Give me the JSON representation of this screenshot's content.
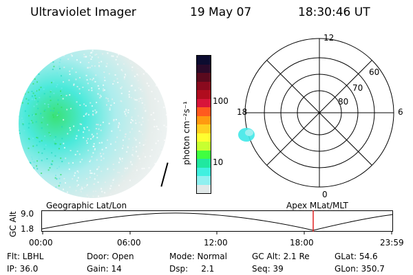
{
  "header": {
    "instrument": "Ultraviolet Imager",
    "date": "19 May 07",
    "time": "18:30:46 UT"
  },
  "colorbar": {
    "unit_label": "photon cm⁻²s⁻¹",
    "ticks": [
      "100",
      "10"
    ],
    "colors": [
      "#0c0c30",
      "#2a0a2a",
      "#5a0a1e",
      "#8a0a1e",
      "#b00c1e",
      "#d8143a",
      "#ff5a1e",
      "#ff9a10",
      "#ffd020",
      "#ffff30",
      "#c8ff30",
      "#40ff40",
      "#20e8a0",
      "#40f0e0",
      "#90f0f0",
      "#e0e8e8"
    ]
  },
  "polar_plot": {
    "mlt_labels": {
      "top": "12",
      "left": "18",
      "right": "6",
      "bottom": "0"
    },
    "lat_labels": [
      "60",
      "70",
      "80"
    ]
  },
  "timeline": {
    "y_axis_label": "GC Alt",
    "y_ticks": [
      "9.0",
      "1.8"
    ],
    "left_label": "Geographic Lat/Lon",
    "right_label": "Apex MLat/MLT",
    "x_ticks": [
      "00:00",
      "06:00",
      "12:00",
      "18:00",
      "23:59"
    ],
    "marker_color": "#e02020"
  },
  "footer": {
    "row1": [
      {
        "text": "Flt: LBHL"
      },
      {
        "text": "Door: Open"
      },
      {
        "text": "Mode: Normal"
      },
      {
        "text": "GC Alt: 2.1 Re"
      },
      {
        "text": "GLat: 54.6"
      }
    ],
    "row2": [
      {
        "text": "IP: 36.0"
      },
      {
        "text": "Gain: 14"
      },
      {
        "text": "Dsp:     2.1"
      },
      {
        "text": "Seq: 39"
      },
      {
        "text": "GLon: 350.7"
      }
    ]
  }
}
